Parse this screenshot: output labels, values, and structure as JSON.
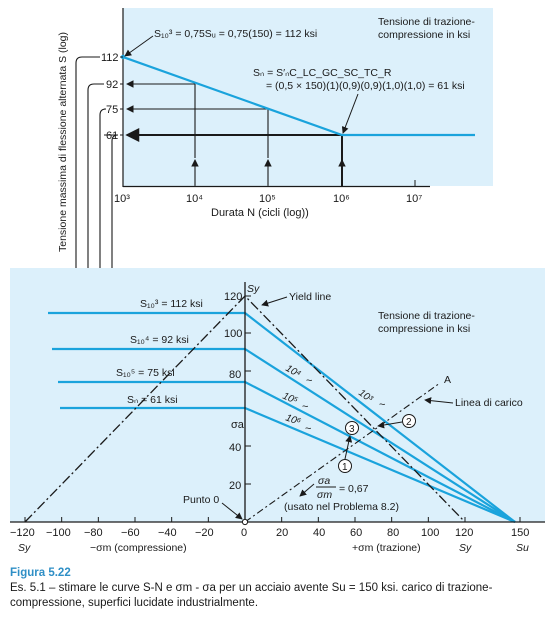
{
  "colors": {
    "panel": "#dcf0fb",
    "curve": "#1aa3dc",
    "ink": "#1a1a1a",
    "caption_title": "#2f8fc6"
  },
  "top": {
    "ylabel": "Tensione massima di flessione alternata S (log)",
    "xlabel": "Durata N (cicli (log))",
    "legend": [
      "Tensione di trazione-",
      "compressione in ksi"
    ],
    "yticks": [
      "112",
      "92",
      "75",
      "61"
    ],
    "xticks": [
      "10³",
      "10⁴",
      "10⁵",
      "10⁶",
      "10⁷"
    ],
    "eq1": "S₁₀³ = 0,75Sᵤ = 0,75(150) = 112 ksi",
    "eq2_line1": "Sₙ = S′ₙC_LC_GC_SC_TC_R",
    "eq2_line2": "= (0,5 × 150)(1)(0,9)(0,9)(1,0)(1,0) = 61 ksi"
  },
  "chart_data": [
    {
      "type": "line",
      "x_scale": "log",
      "x": [
        1000,
        10000,
        100000,
        1000000,
        10000000
      ],
      "series": [
        {
          "values": [
            112,
            92,
            75,
            61,
            61
          ]
        }
      ],
      "ylim": [
        0,
        130
      ],
      "xlabel": "Durata N (cicli (log))",
      "ylabel": "Tensione massima di flessione alternata S (log)"
    },
    {
      "type": "line",
      "xlabel": "σm",
      "ylabel": "σa",
      "xlim": [
        -120,
        150
      ],
      "ylim": [
        0,
        120
      ],
      "series": [
        {
          "name": "10³",
          "x": [
            0,
            150
          ],
          "values": [
            112,
            0
          ]
        },
        {
          "name": "10⁴",
          "x": [
            0,
            150
          ],
          "values": [
            92,
            0
          ]
        },
        {
          "name": "10⁵",
          "x": [
            0,
            150
          ],
          "values": [
            75,
            0
          ]
        },
        {
          "name": "10⁶",
          "x": [
            0,
            150
          ],
          "values": [
            61,
            0
          ]
        },
        {
          "name": "Yield line",
          "x": [
            -120,
            0,
            120
          ],
          "values": [
            0,
            120,
            0
          ]
        },
        {
          "name": "Linea di carico",
          "x": [
            0,
            107
          ],
          "values": [
            0,
            72
          ]
        }
      ]
    }
  ],
  "bottom": {
    "legend": [
      "Tensione di trazione-",
      "compressione in ksi"
    ],
    "yticks": [
      "120",
      "100",
      "80",
      "40",
      "20"
    ],
    "sy_top": "Sy",
    "sigma_a": "σa",
    "xticks": [
      "−120",
      "−100",
      "−80",
      "−60",
      "−40",
      "−20",
      "0",
      "20",
      "40",
      "60",
      "80",
      "100",
      "120",
      "150"
    ],
    "sy_left": "Sy",
    "sy_right": "Sy",
    "su": "Su",
    "xlabel_left": "−σm (compressione)",
    "xlabel_right": "+σm (trazione)",
    "yield_label": "Yield line",
    "load_label": "Linea di carico",
    "point_A": "A",
    "punto0": "Punto 0",
    "ratio_num": "σa",
    "ratio_den": "σm",
    "ratio_val": "= 0,67",
    "ratio_note": "(usato nel Problema 8.2)",
    "curve_labels": [
      "10³",
      "10⁴",
      "10⁵",
      "10⁶"
    ],
    "tilde": "~",
    "markers": [
      "1",
      "2",
      "3"
    ],
    "level_labels": [
      "S₁₀³ = 112 ksi",
      "S₁₀⁴ = 92 ksi",
      "S₁₀⁵ = 75 ksi",
      "Sₙ = 61 ksi"
    ]
  },
  "caption": {
    "title": "Figura 5.22",
    "text": "Es. 5.1 – stimare le curve S-N e σm - σa per un acciaio avente Su = 150 ksi. carico di trazione-compressione, superfici lucidate industrialmente."
  }
}
